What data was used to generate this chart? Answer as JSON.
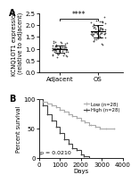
{
  "panel_A": {
    "title_label": "A",
    "group1_name": "Adjacent",
    "group2_name": "OS",
    "group1_mean": 1.0,
    "group1_sd": 0.15,
    "group2_mean": 1.72,
    "group2_sd": 0.28,
    "group1_n": 54,
    "group2_n": 54,
    "ylabel": "KCNQ1OT1 expression\n(relative to adjacent)",
    "ylim": [
      0.0,
      2.5
    ],
    "yticks": [
      0.0,
      0.5,
      1.0,
      1.5,
      2.0,
      2.5
    ],
    "significance": "****",
    "dot_color": "#444444",
    "dot_size": 1.5
  },
  "panel_B": {
    "title_label": "B",
    "ylabel": "Percent survival",
    "xlabel": "Days",
    "xlim": [
      0,
      4000
    ],
    "ylim": [
      0,
      100
    ],
    "xticks": [
      0,
      1000,
      2000,
      3000,
      4000
    ],
    "yticks": [
      0,
      50,
      100
    ],
    "pvalue": "p = 0.0210",
    "low_label": "Low (n=28)",
    "high_label": "High (n=28)",
    "low_color": "#aaaaaa",
    "high_color": "#444444",
    "low_times": [
      0,
      200,
      400,
      600,
      800,
      1000,
      1200,
      1400,
      1600,
      1800,
      2000,
      2200,
      2400,
      2500,
      2700,
      2900,
      3200,
      3600
    ],
    "low_survival": [
      100,
      96,
      92,
      89,
      86,
      82,
      79,
      75,
      71,
      68,
      64,
      61,
      57,
      57,
      54,
      50,
      50,
      50
    ],
    "high_times": [
      0,
      200,
      400,
      600,
      800,
      1000,
      1200,
      1400,
      1600,
      1800,
      2000,
      2160,
      2400
    ],
    "high_survival": [
      100,
      89,
      75,
      64,
      54,
      43,
      32,
      25,
      18,
      14,
      7,
      4,
      0
    ]
  },
  "figure": {
    "bg_color": "#ffffff",
    "font_size": 5.0
  }
}
